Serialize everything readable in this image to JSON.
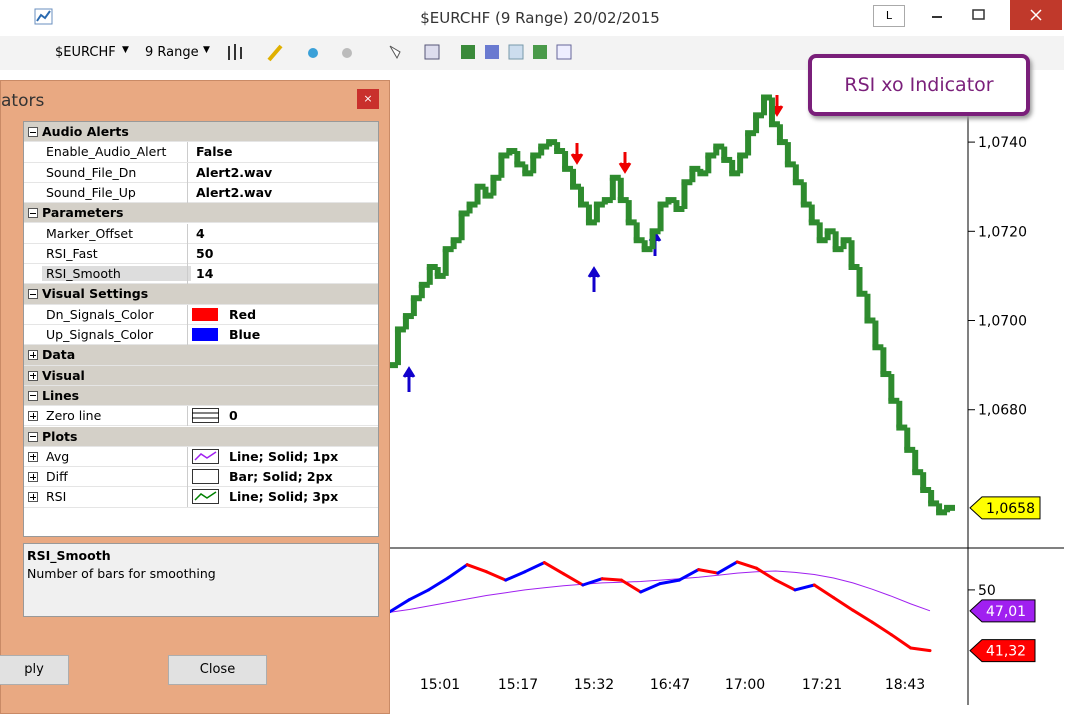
{
  "window": {
    "title": "$EURCHF (9 Range)  20/02/2015",
    "mode_button": "L"
  },
  "toolbar": {
    "symbol": "$EURCHF",
    "interval": "9 Range"
  },
  "overlay_label": "RSI xo Indicator",
  "indicator_panel": {
    "title": "ators",
    "sections": [
      {
        "section": "Audio Alerts",
        "expanded": true,
        "rows": [
          {
            "name": "Enable_Audio_Alert",
            "value": "False"
          },
          {
            "name": "Sound_File_Dn",
            "value": "Alert2.wav"
          },
          {
            "name": "Sound_File_Up",
            "value": "Alert2.wav"
          }
        ]
      },
      {
        "section": "Parameters",
        "expanded": true,
        "rows": [
          {
            "name": "Marker_Offset",
            "value": 4
          },
          {
            "name": "RSI_Fast",
            "value": 50
          },
          {
            "name": "RSI_Smooth",
            "value": 14,
            "selected": true
          }
        ]
      },
      {
        "section": "Visual Settings",
        "expanded": true,
        "rows": [
          {
            "name": "Dn_Signals_Color",
            "value": "Red",
            "swatch": "#ff0000"
          },
          {
            "name": "Up_Signals_Color",
            "value": "Blue",
            "swatch": "#0000ff"
          }
        ]
      },
      {
        "section": "Data",
        "expanded": false,
        "rows": []
      },
      {
        "section": "Visual",
        "expanded": false,
        "rows": []
      },
      {
        "section": "Lines",
        "expanded": true,
        "rows": [
          {
            "name": "Zero line",
            "value": 0,
            "expandable": true,
            "icon": {
              "kind": "hline",
              "color": "#000000"
            }
          }
        ]
      },
      {
        "section": "Plots",
        "expanded": true,
        "rows": [
          {
            "name": "Avg",
            "value": "Line; Solid; 1px",
            "expandable": true,
            "icon": {
              "kind": "line",
              "color": "#a020f0"
            }
          },
          {
            "name": "Diff",
            "value": "Bar; Solid; 2px",
            "expandable": true,
            "icon": {
              "kind": "bar",
              "color": "#000000"
            }
          },
          {
            "name": "RSI",
            "value": "Line; Solid; 3px",
            "expandable": true,
            "icon": {
              "kind": "line",
              "color": "#008000"
            }
          }
        ]
      }
    ],
    "description": {
      "title": "RSI_Smooth",
      "text": "Number of bars for smoothing"
    },
    "buttons": [
      "ply",
      "Close"
    ]
  },
  "chart_data": [
    {
      "type": "step",
      "color": "#2e8b2e",
      "values": [
        1.069,
        1.0698,
        1.0701,
        1.0705,
        1.0708,
        1.0712,
        1.071,
        1.0716,
        1.0718,
        1.0724,
        1.0726,
        1.073,
        1.0728,
        1.0732,
        1.0737,
        1.0738,
        1.0735,
        1.0733,
        1.0737,
        1.0739,
        1.074,
        1.0738,
        1.0734,
        1.073,
        1.0726,
        1.0722,
        1.0726,
        1.0727,
        1.0732,
        1.0727,
        1.0722,
        1.0718,
        1.0716,
        1.072,
        1.0726,
        1.0727,
        1.0725,
        1.0731,
        1.0734,
        1.0733,
        1.0737,
        1.0739,
        1.0736,
        1.0733,
        1.0737,
        1.0742,
        1.0746,
        1.075,
        1.0744,
        1.074,
        1.0735,
        1.0731,
        1.0726,
        1.0722,
        1.0718,
        1.072,
        1.0716,
        1.0718,
        1.0712,
        1.0706,
        1.07,
        1.0694,
        1.0688,
        1.0682,
        1.0676,
        1.0671,
        1.0666,
        1.0662,
        1.0659,
        1.0657,
        1.0658
      ],
      "last_label": "1,0658",
      "last_label_color": "#ffff00",
      "ylim": [
        1.0649,
        1.07528
      ],
      "yticks": [
        {
          "value": 1.074,
          "label": "1,0740"
        },
        {
          "value": 1.072,
          "label": "1,0720"
        },
        {
          "value": 1.07,
          "label": "1,0700"
        },
        {
          "value": 1.068,
          "label": "1,0680"
        }
      ]
    },
    {
      "type": "line",
      "series": [
        {
          "color": "#ff0000",
          "up_color": "#0000ff",
          "last_label": "41,32",
          "values": [
            46.9,
            48.6,
            50.0,
            51.7,
            53.6,
            52.6,
            51.4,
            52.6,
            53.9,
            52.3,
            50.7,
            51.6,
            51.4,
            49.7,
            50.9,
            51.4,
            52.9,
            52.4,
            54.0,
            53.1,
            51.4,
            50.0,
            50.7,
            48.9,
            47.1,
            45.4,
            43.6,
            41.7,
            41.32
          ]
        },
        {
          "color": "#a020f0",
          "last_label": "47,01",
          "values": [
            46.8,
            47.2,
            47.7,
            48.2,
            48.7,
            49.2,
            49.6,
            50.0,
            50.3,
            50.6,
            50.8,
            51.0,
            51.1,
            51.2,
            51.4,
            51.6,
            51.8,
            52.1,
            52.4,
            52.6,
            52.7,
            52.5,
            52.2,
            51.7,
            51.0,
            50.1,
            49.1,
            48.0,
            47.01
          ]
        }
      ],
      "ylim": [
        35.7,
        55.7
      ],
      "yticks": [
        50
      ],
      "x_labels": [
        "15:01",
        "15:17",
        "15:32",
        "16:47",
        "17:00",
        "17:21",
        "18:43"
      ]
    }
  ]
}
